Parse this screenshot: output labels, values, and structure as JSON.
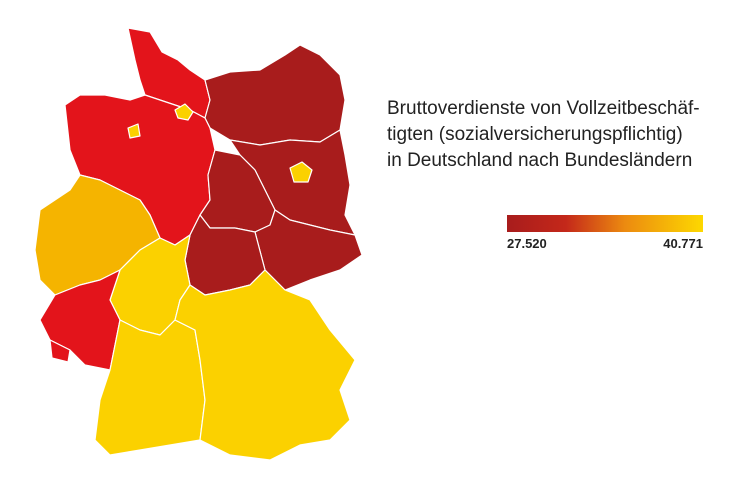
{
  "title_lines": [
    "Bruttoverdienste von Vollzeitbeschäf-",
    "tigten (sozialversicherungspflichtig)",
    "in Deutschland nach Bundesländern"
  ],
  "legend": {
    "min": "27.520",
    "max": "40.771"
  }
}
